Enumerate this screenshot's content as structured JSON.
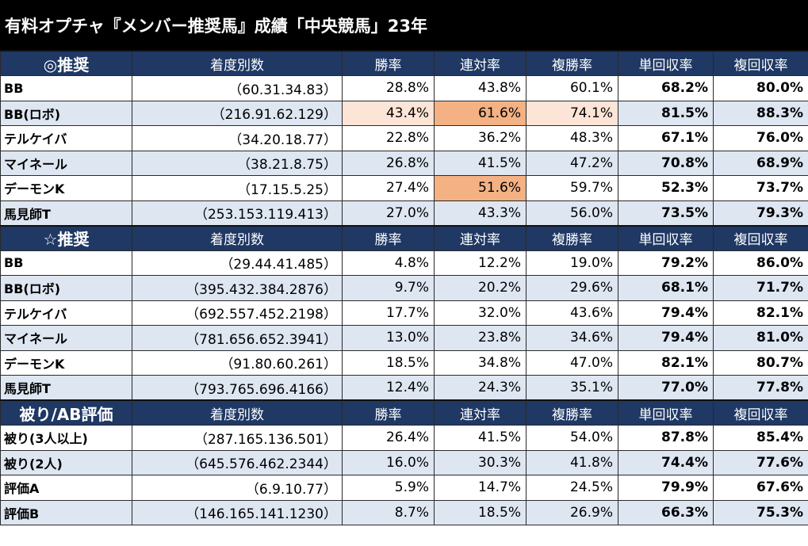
{
  "title": "有料オプチャ『メンバー推奨馬』成績「中央競馬」23年",
  "columns": [
    "着度別数",
    "勝率",
    "連対率",
    "複勝率",
    "単回収率",
    "複回収率"
  ],
  "sections": [
    {
      "label": "◎推奨",
      "rows": [
        {
          "name": "BB",
          "counts": "（60.31.34.83）",
          "win": "28.8%",
          "place2": "43.8%",
          "place3": "60.1%",
          "ret_win": "68.2%",
          "ret_place": "80.0%"
        },
        {
          "name": "BB(ロボ)",
          "counts": "（216.91.62.129）",
          "win": "43.4%",
          "place2": "61.6%",
          "place3": "74.1%",
          "ret_win": "81.5%",
          "ret_place": "88.3%",
          "hl": {
            "win": "light",
            "place2": "orange",
            "place3": "light"
          }
        },
        {
          "name": "テルケイバ",
          "counts": "（34.20.18.77）",
          "win": "22.8%",
          "place2": "36.2%",
          "place3": "48.3%",
          "ret_win": "67.1%",
          "ret_place": "76.0%"
        },
        {
          "name": "マイネール",
          "counts": "（38.21.8.75）",
          "win": "26.8%",
          "place2": "41.5%",
          "place3": "47.2%",
          "ret_win": "70.8%",
          "ret_place": "68.9%"
        },
        {
          "name": "デーモンK",
          "counts": "（17.15.5.25）",
          "win": "27.4%",
          "place2": "51.6%",
          "place3": "59.7%",
          "ret_win": "52.3%",
          "ret_place": "73.7%",
          "hl": {
            "place2": "orange"
          }
        },
        {
          "name": "馬見師T",
          "counts": "（253.153.119.413）",
          "win": "27.0%",
          "place2": "43.3%",
          "place3": "56.0%",
          "ret_win": "73.5%",
          "ret_place": "79.3%"
        }
      ]
    },
    {
      "label": "☆推奨",
      "rows": [
        {
          "name": "BB",
          "counts": "（29.44.41.485）",
          "win": "4.8%",
          "place2": "12.2%",
          "place3": "19.0%",
          "ret_win": "79.2%",
          "ret_place": "86.0%"
        },
        {
          "name": "BB(ロボ)",
          "counts": "（395.432.384.2876）",
          "win": "9.7%",
          "place2": "20.2%",
          "place3": "29.6%",
          "ret_win": "68.1%",
          "ret_place": "71.7%"
        },
        {
          "name": "テルケイバ",
          "counts": "（692.557.452.2198）",
          "win": "17.7%",
          "place2": "32.0%",
          "place3": "43.6%",
          "ret_win": "79.4%",
          "ret_place": "82.1%"
        },
        {
          "name": "マイネール",
          "counts": "（781.656.652.3941）",
          "win": "13.0%",
          "place2": "23.8%",
          "place3": "34.6%",
          "ret_win": "79.4%",
          "ret_place": "81.0%"
        },
        {
          "name": "デーモンK",
          "counts": "（91.80.60.261）",
          "win": "18.5%",
          "place2": "34.8%",
          "place3": "47.0%",
          "ret_win": "82.1%",
          "ret_place": "80.7%"
        },
        {
          "name": "馬見師T",
          "counts": "（793.765.696.4166）",
          "win": "12.4%",
          "place2": "24.3%",
          "place3": "35.1%",
          "ret_win": "77.0%",
          "ret_place": "77.8%"
        }
      ]
    },
    {
      "label": "被り/AB評価",
      "rows": [
        {
          "name": "被り(3人以上)",
          "counts": "（287.165.136.501）",
          "win": "26.4%",
          "place2": "41.5%",
          "place3": "54.0%",
          "ret_win": "87.8%",
          "ret_place": "85.4%"
        },
        {
          "name": "被り(2人)",
          "counts": "（645.576.462.2344）",
          "win": "16.0%",
          "place2": "30.3%",
          "place3": "41.8%",
          "ret_win": "74.4%",
          "ret_place": "77.6%"
        },
        {
          "name": "評価A",
          "counts": "（6.9.10.77）",
          "win": "5.9%",
          "place2": "14.7%",
          "place3": "24.5%",
          "ret_win": "79.9%",
          "ret_place": "67.6%"
        },
        {
          "name": "評価B",
          "counts": "（146.165.141.1230）",
          "win": "8.7%",
          "place2": "18.5%",
          "place3": "26.9%",
          "ret_win": "66.3%",
          "ret_place": "75.3%"
        }
      ]
    }
  ]
}
